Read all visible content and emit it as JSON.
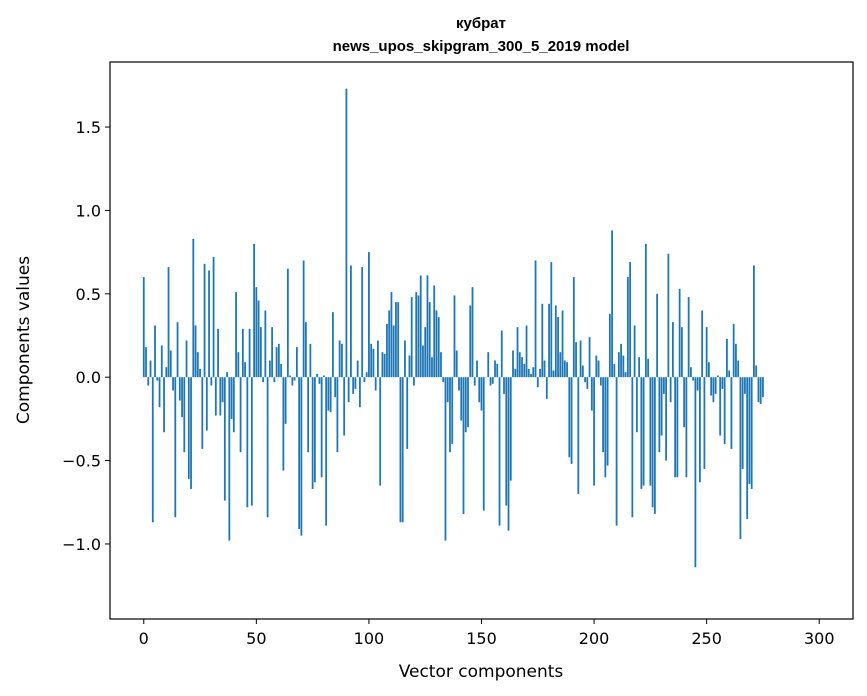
{
  "chart_data": {
    "type": "bar",
    "title": "кубрат",
    "subtitle": "news_upos_skipgram_300_5_2019 model",
    "xlabel": "Vector components",
    "ylabel": "Components values",
    "xlim": [
      -15,
      315
    ],
    "ylim": [
      -1.45,
      1.89
    ],
    "x_ticks": [
      0,
      50,
      100,
      150,
      200,
      250,
      300
    ],
    "x_tick_labels": [
      "0",
      "50",
      "100",
      "150",
      "200",
      "250",
      "300"
    ],
    "y_ticks": [
      -1.0,
      -0.5,
      0.0,
      0.5,
      1.0,
      1.5
    ],
    "y_tick_labels": [
      "−1.0",
      "−0.5",
      "0.0",
      "0.5",
      "1.0",
      "1.5"
    ],
    "bar_color": "#1f77b4",
    "values": [
      0.6,
      0.18,
      -0.05,
      0.1,
      -0.87,
      0.31,
      -0.02,
      -0.18,
      0.19,
      -0.33,
      0.06,
      0.66,
      0.16,
      -0.08,
      -0.84,
      0.33,
      -0.14,
      -0.24,
      -0.45,
      0.22,
      -0.61,
      -0.67,
      0.83,
      0.31,
      0.15,
      0.05,
      -0.43,
      0.68,
      -0.32,
      0.64,
      -0.05,
      0.72,
      -0.23,
      0.29,
      -0.23,
      -0.15,
      -0.74,
      0.03,
      -0.98,
      -0.25,
      -0.33,
      0.51,
      0.15,
      -0.45,
      0.29,
      0.09,
      -0.78,
      0.29,
      -0.77,
      0.8,
      0.54,
      0.46,
      0.3,
      -0.03,
      0.4,
      -0.84,
      0.1,
      0.3,
      -0.03,
      0.18,
      0.2,
      0.08,
      -0.56,
      -0.28,
      0.65,
      0.01,
      -0.05,
      -0.02,
      0.18,
      -0.91,
      -0.95,
      0.7,
      0.33,
      -0.45,
      0.2,
      -0.67,
      -0.63,
      0.02,
      -0.04,
      -0.6,
      0.01,
      -0.89,
      -0.2,
      -0.21,
      0.39,
      -0.12,
      -0.45,
      0.22,
      0.2,
      -0.35,
      1.73,
      -0.15,
      0.67,
      -0.1,
      -0.07,
      0.1,
      -0.18,
      0.66,
      -0.03,
      0.03,
      0.75,
      0.2,
      0.17,
      -0.08,
      0.22,
      -0.65,
      0.15,
      0.14,
      0.32,
      0.4,
      0.51,
      0.31,
      0.45,
      0.45,
      -0.87,
      -0.87,
      0.22,
      -0.43,
      0.13,
      0.48,
      -0.05,
      0.51,
      0.49,
      0.61,
      0.19,
      0.3,
      0.61,
      0.45,
      0.12,
      0.55,
      0.4,
      0.36,
      0.15,
      -0.03,
      -0.98,
      -0.15,
      -0.45,
      -0.4,
      0.49,
      0.16,
      -0.08,
      -0.26,
      -0.82,
      -0.33,
      -0.3,
      0.43,
      0.54,
      -0.05,
      0.1,
      -0.15,
      -0.2,
      -0.8,
      0.0,
      0.15,
      -0.05,
      -0.04,
      0.1,
      0.08,
      -0.89,
      0.28,
      -0.1,
      -0.77,
      -0.92,
      -0.62,
      0.16,
      0.05,
      0.3,
      0.15,
      0.12,
      0.08,
      0.31,
      0.05,
      0.02,
      0.06,
      0.7,
      -0.06,
      0.05,
      0.44,
      0.1,
      -0.13,
      0.44,
      0.69,
      0.04,
      0.43,
      0.36,
      0.15,
      0.4,
      0.1,
      0.09,
      -0.48,
      -0.52,
      0.6,
      0.21,
      -0.7,
      0.22,
      0.07,
      -0.03,
      -0.07,
      0.24,
      -0.2,
      -0.65,
      0.13,
      0.1,
      -0.05,
      -0.45,
      -0.6,
      -0.53,
      0.38,
      0.88,
      0.08,
      -0.89,
      0.15,
      0.2,
      0.13,
      0.03,
      0.6,
      0.69,
      -0.84,
      0.31,
      -0.33,
      0.12,
      -0.67,
      -0.65,
      0.8,
      0.11,
      -0.65,
      -0.78,
      -0.82,
      0.5,
      -0.45,
      -0.35,
      -0.1,
      -0.5,
      0.74,
      -0.15,
      0.33,
      -0.6,
      -0.6,
      0.53,
      0.3,
      -0.3,
      -0.6,
      0.48,
      0.06,
      -0.02,
      -1.14,
      -0.08,
      -0.63,
      0.4,
      -0.55,
      0.3,
      0.09,
      -0.11,
      -0.15,
      -0.1,
      0.01,
      -0.35,
      -0.07,
      -0.4,
      0.23,
      0.04,
      -0.43,
      0.32,
      0.2,
      0.1,
      -0.97,
      -0.55,
      -0.1,
      -0.85,
      -0.64,
      -0.67,
      0.67,
      0.07,
      -0.15,
      -0.16,
      -0.12
    ]
  }
}
